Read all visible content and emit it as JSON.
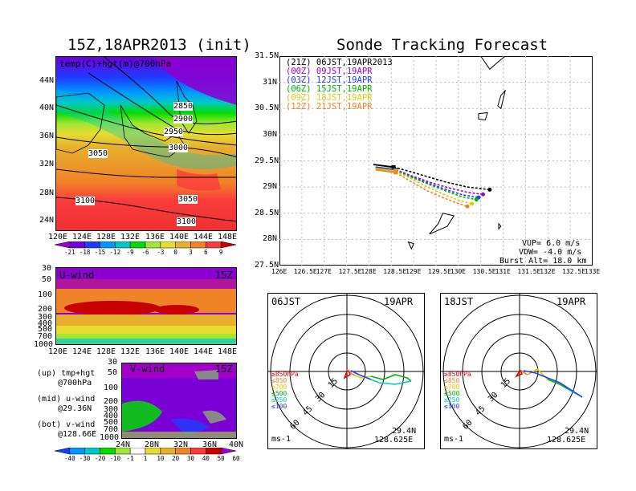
{
  "left_title": "15Z,18APR2013 (init)",
  "right_title": "Sonde Tracking Forecast",
  "map_panel": {
    "label": "temp(C)+hgt(m)@700hPa",
    "lat_ticks": [
      "44N",
      "40N",
      "36N",
      "32N",
      "28N",
      "24N"
    ],
    "lon_ticks": [
      "120E",
      "124E",
      "128E",
      "132E",
      "136E",
      "140E",
      "144E",
      "148E"
    ],
    "contour_labels": [
      "2850",
      "2900",
      "2950",
      "3000",
      "3050",
      "3050",
      "3100",
      "3100"
    ]
  },
  "temp_colorbar": {
    "labels": [
      "-21",
      "-18",
      "-15",
      "-12",
      "-9",
      "-6",
      "-3",
      "0",
      "3",
      "6",
      "9"
    ],
    "colors": [
      "#a000c8",
      "#6e00dc",
      "#1e3cff",
      "#0096ff",
      "#00c8c8",
      "#00dc00",
      "#a0e632",
      "#e6dc32",
      "#e6af2d",
      "#f08228",
      "#fa3c3c",
      "#c80000"
    ]
  },
  "u_panel": {
    "label": "U-wind",
    "time": "15Z",
    "p_ticks": [
      "30",
      "50",
      "100",
      "200",
      "300",
      "400",
      "500",
      "700",
      "1000"
    ],
    "lon_ticks": [
      "120E",
      "124E",
      "128E",
      "132E",
      "136E",
      "140E",
      "144E",
      "148E"
    ]
  },
  "v_panel": {
    "label": "V-wind",
    "time": "15Z",
    "p_ticks": [
      "30",
      "50",
      "100",
      "200",
      "300",
      "400",
      "500",
      "700",
      "1000"
    ],
    "lat_ticks": [
      "24N",
      "28N",
      "32N",
      "36N",
      "40N"
    ]
  },
  "notes": {
    "up": "(up) tmp+hgt",
    "up2": "@700hPa",
    "mid": "(mid) u-wind",
    "mid2": "@29.36N",
    "bot": "(bot) v-wind",
    "bot2": "@128.66E"
  },
  "wind_colorbar": {
    "labels": [
      "-40",
      "-30",
      "-20",
      "-10",
      "-1",
      "1",
      "10",
      "20",
      "30",
      "40",
      "50",
      "60"
    ],
    "colors": [
      "#1e3cff",
      "#0096ff",
      "#00c8c8",
      "#00dc00",
      "#a0e632",
      "#ffffff",
      "#e6dc32",
      "#e6af2d",
      "#f08228",
      "#fa3c3c",
      "#c80000",
      "#a000c8"
    ]
  },
  "track_panel": {
    "lat_ticks": [
      "31.5N",
      "31N",
      "30.5N",
      "30N",
      "29.5N",
      "29N",
      "28.5N",
      "28N",
      "27.5N"
    ],
    "lon_ticks": [
      "126E",
      "126.5E",
      "127E",
      "127.5E",
      "128E",
      "128.5E",
      "129E",
      "129.5E",
      "130E",
      "130.5E",
      "131E",
      "131.5E",
      "132E",
      "132.5E",
      "133E"
    ],
    "legend": [
      {
        "label": "(21Z) 06JST,19APR2013",
        "color": "#000000"
      },
      {
        "label": "(00Z) 09JST,19APR",
        "color": "#a000c8"
      },
      {
        "label": "(03Z) 12JST,19APR",
        "color": "#1e3cff"
      },
      {
        "label": "(06Z) 15JST,19APR",
        "color": "#00b400"
      },
      {
        "label": "(09Z) 18JST,19APR",
        "color": "#e6c800"
      },
      {
        "label": "(12Z) 21JST,19APR",
        "color": "#f08228"
      }
    ],
    "params": {
      "vup": "VUP= 6.0 m/s",
      "vdw": "VDW= -4.0 m/s",
      "burst": "Burst Alt= 18.0 km"
    }
  },
  "chart_data": {
    "type": "line",
    "title": "Sonde Tracking Forecast",
    "xlim": [
      126,
      133
    ],
    "ylim": [
      27.5,
      31.5
    ],
    "launch": {
      "lon": 128.625,
      "lat": 29.4
    },
    "series": [
      {
        "name": "(21Z) 06JST,19APR2013",
        "color": "#000000",
        "x": [
          128.55,
          128.9,
          129.3,
          129.7,
          130.2,
          130.7
        ],
        "y": [
          29.38,
          29.3,
          29.2,
          29.1,
          29.0,
          28.95
        ]
      },
      {
        "name": "(00Z) 09JST,19APR",
        "color": "#a000c8",
        "x": [
          128.6,
          129.0,
          129.4,
          129.8,
          130.2,
          130.55
        ],
        "y": [
          29.33,
          29.2,
          29.08,
          28.98,
          28.9,
          28.86
        ]
      },
      {
        "name": "(03Z) 12JST,19APR",
        "color": "#1e3cff",
        "x": [
          128.6,
          129.0,
          129.4,
          129.8,
          130.1,
          130.45
        ],
        "y": [
          29.32,
          29.18,
          29.05,
          28.93,
          28.85,
          28.8
        ]
      },
      {
        "name": "(06Z) 15JST,19APR",
        "color": "#00b400",
        "x": [
          128.6,
          129.0,
          129.4,
          129.8,
          130.1,
          130.4
        ],
        "y": [
          29.31,
          29.17,
          29.03,
          28.9,
          28.81,
          28.76
        ]
      },
      {
        "name": "(09Z) 18JST,19APR",
        "color": "#e6c800",
        "x": [
          128.6,
          129.0,
          129.35,
          129.7,
          130.0,
          130.3
        ],
        "y": [
          29.3,
          29.14,
          28.98,
          28.85,
          28.75,
          28.68
        ]
      },
      {
        "name": "(12Z) 21JST,19APR",
        "color": "#f08228",
        "x": [
          128.6,
          128.95,
          129.3,
          129.65,
          129.95,
          130.2
        ],
        "y": [
          29.28,
          29.1,
          28.93,
          28.8,
          28.7,
          28.63
        ]
      }
    ]
  },
  "hodo_left": {
    "time": "06JST",
    "date": "19APR",
    "unit": "ms-1",
    "lat": "29.4N",
    "lon": "128.625E",
    "ring_labels": [
      "15",
      "30",
      "45",
      "60"
    ],
    "levels": [
      {
        "label": "≥850hPa",
        "color": "#e60000"
      },
      {
        "label": "≤850",
        "color": "#f08228"
      },
      {
        "label": "≤700",
        "color": "#e6c800"
      },
      {
        "label": "≤500",
        "color": "#00b400"
      },
      {
        "label": "≤250",
        "color": "#00c8c8"
      },
      {
        "label": "≤100",
        "color": "#1e3cff"
      }
    ]
  },
  "hodo_right": {
    "time": "18JST",
    "date": "19APR",
    "unit": "ms-1",
    "lat": "29.4N",
    "lon": "128.625E",
    "ring_labels": [
      "15",
      "30",
      "45",
      "60"
    ],
    "levels": [
      {
        "label": "≥850hPa",
        "color": "#e60000"
      },
      {
        "label": "≤850",
        "color": "#f08228"
      },
      {
        "label": "≤700",
        "color": "#e6c800"
      },
      {
        "label": "≤500",
        "color": "#00b400"
      },
      {
        "label": "≤250",
        "color": "#00c8c8"
      },
      {
        "label": "≤100",
        "color": "#1e3cff"
      }
    ]
  }
}
